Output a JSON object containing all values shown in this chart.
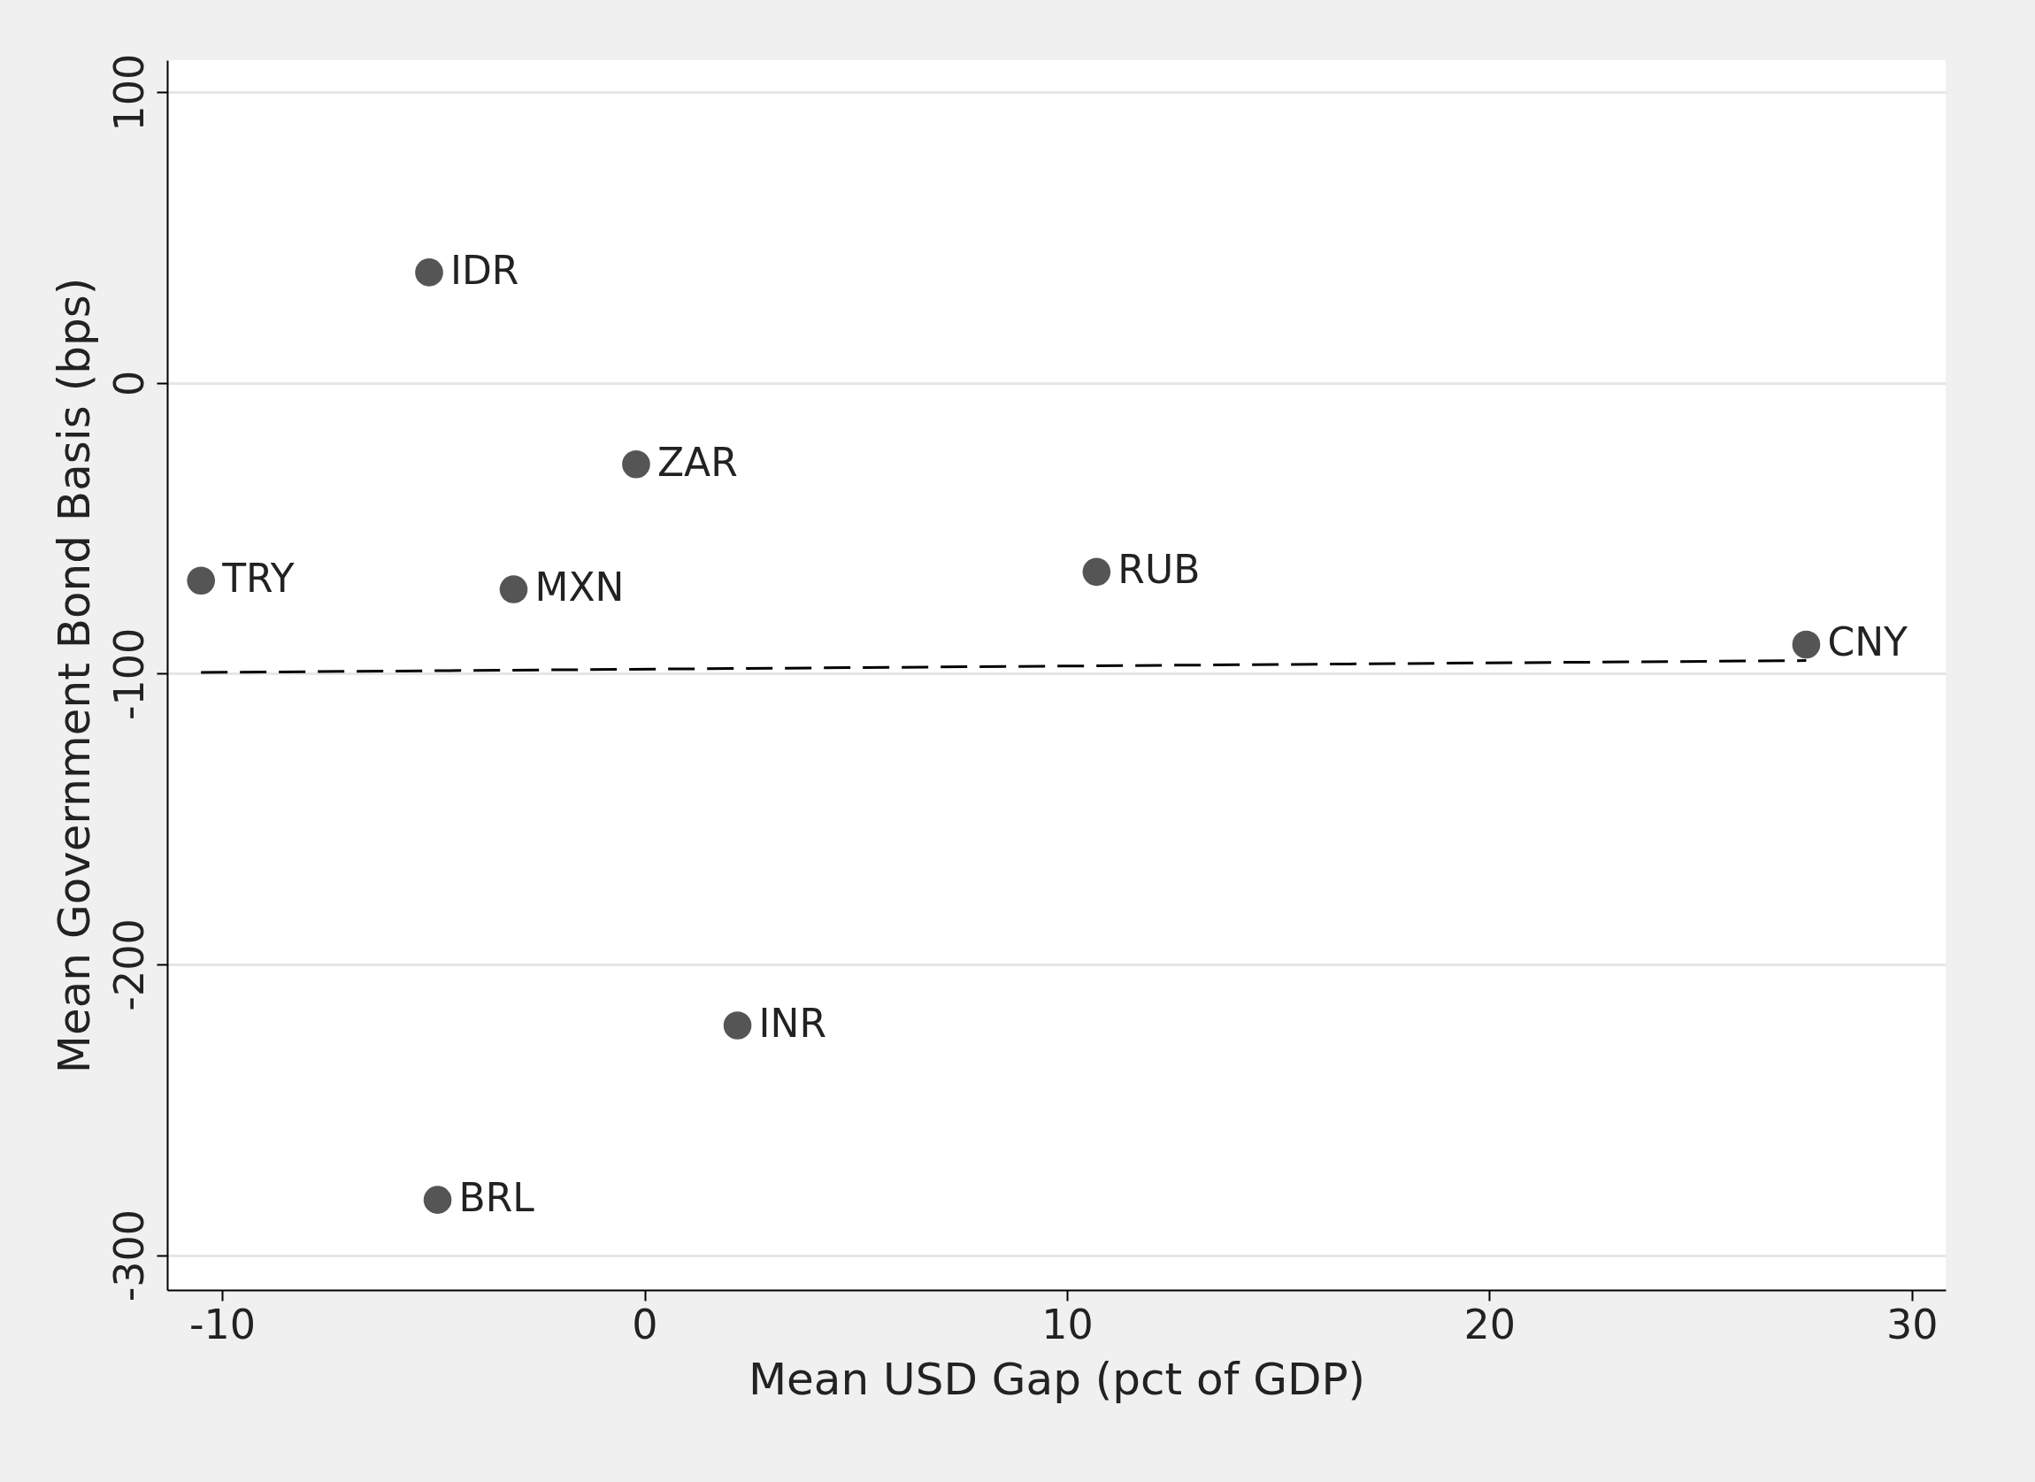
{
  "chart_data": {
    "type": "scatter",
    "xlabel": "Mean USD Gap (pct of GDP)",
    "ylabel": "Mean Government Bond Basis (bps)",
    "x": [
      -5.1,
      -0.2,
      -10.5,
      -3.1,
      10.7,
      27.5,
      2.2,
      -4.9
    ],
    "series": [
      {
        "color": "#555555",
        "marker": "circle",
        "values": [
          38,
          -28,
          -68,
          -71,
          -65,
          -90,
          -221,
          -281
        ]
      },
      {
        "type": "line",
        "marker": "none",
        "color": "#000000",
        "line_style": "dashed",
        "x": [
          -10.5,
          27.5
        ],
        "values": [
          -99.6,
          -95.5
        ]
      }
    ],
    "annotations": [
      {
        "text": "IDR",
        "x": -5.1,
        "y": 38
      },
      {
        "text": "ZAR",
        "x": -0.2,
        "y": -28
      },
      {
        "text": "TRY",
        "x": -10.5,
        "y": -68
      },
      {
        "text": "MXN",
        "x": -3.1,
        "y": -71
      },
      {
        "text": "RUB",
        "x": 10.7,
        "y": -65
      },
      {
        "text": "CNY",
        "x": 27.5,
        "y": -90
      },
      {
        "text": "INR",
        "x": 2.2,
        "y": -221
      },
      {
        "text": "BRL",
        "x": -4.9,
        "y": -281
      }
    ],
    "xlim": [
      -11.3,
      30.8
    ],
    "ylim": [
      -312,
      111
    ],
    "xticks": [
      -10,
      0,
      10,
      20,
      30
    ],
    "yticks": [
      -300,
      -200,
      -100,
      0,
      100
    ],
    "grid": "y"
  }
}
